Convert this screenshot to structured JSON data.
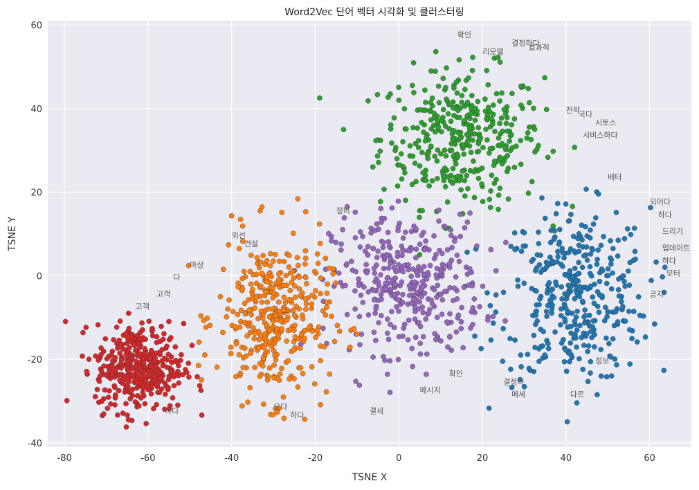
{
  "chart_data": {
    "type": "scatter",
    "title": "Word2Vec 단어 벡터 시각화 및 클러스터링",
    "xlabel": "TSNE X",
    "ylabel": "TSNE Y",
    "xlim": [
      -84,
      70
    ],
    "ylim": [
      -41,
      61
    ],
    "xticks": [
      -80,
      -60,
      -40,
      -20,
      0,
      20,
      40,
      60
    ],
    "yticks": [
      -40,
      -20,
      0,
      20,
      40,
      60
    ],
    "xtick_labels": [
      "-80",
      "-60",
      "-40",
      "-20",
      "0",
      "20",
      "40",
      "60"
    ],
    "ytick_labels": [
      "-40",
      "-20",
      "0",
      "20",
      "40",
      "60"
    ],
    "grid": true,
    "background": "#eaeaf2",
    "clusters": [
      {
        "color": "#2ca02c",
        "center": [
          15,
          33
        ],
        "spread": [
          13,
          11
        ]
      },
      {
        "color": "#1f77b4",
        "center": [
          42,
          -5
        ],
        "spread": [
          12,
          14
        ]
      },
      {
        "color": "#9467bd",
        "center": [
          2,
          -2
        ],
        "spread": [
          12,
          11
        ]
      },
      {
        "color": "#ff7f0e",
        "center": [
          -30,
          -10
        ],
        "spread": [
          9,
          13
        ]
      },
      {
        "color": "#d62728",
        "center": [
          -62,
          -22
        ],
        "spread": [
          7,
          7
        ]
      }
    ],
    "labels": [
      {
        "x": 14,
        "y": 57,
        "text": "확인"
      },
      {
        "x": 27,
        "y": 55,
        "text": "결정하다"
      },
      {
        "x": 31,
        "y": 54,
        "text": "효과적"
      },
      {
        "x": 20,
        "y": 53,
        "text": "리모델"
      },
      {
        "x": 40,
        "y": 39,
        "text": "전략"
      },
      {
        "x": 43,
        "y": 38,
        "text": "국다"
      },
      {
        "x": 47,
        "y": 36,
        "text": "시토스"
      },
      {
        "x": 44,
        "y": 33,
        "text": "서비스하다"
      },
      {
        "x": 50,
        "y": 23,
        "text": "배터"
      },
      {
        "x": 60,
        "y": 17,
        "text": "되어다"
      },
      {
        "x": 62,
        "y": 14,
        "text": "하다"
      },
      {
        "x": 63,
        "y": 10,
        "text": "드리기"
      },
      {
        "x": 63,
        "y": 6,
        "text": "업데이트"
      },
      {
        "x": 63,
        "y": 3,
        "text": "하다"
      },
      {
        "x": 64,
        "y": 0,
        "text": "모터"
      },
      {
        "x": 60,
        "y": -5,
        "text": "공지"
      },
      {
        "x": 47,
        "y": -21,
        "text": "정보"
      },
      {
        "x": 25,
        "y": -26,
        "text": "결정다"
      },
      {
        "x": 27,
        "y": -29,
        "text": "메세"
      },
      {
        "x": 41,
        "y": -29,
        "text": "다르"
      },
      {
        "x": 12,
        "y": -24,
        "text": "확인"
      },
      {
        "x": 5,
        "y": -28,
        "text": "메시지"
      },
      {
        "x": -7,
        "y": -33,
        "text": "결세"
      },
      {
        "x": -15,
        "y": 15,
        "text": "정비"
      },
      {
        "x": -40,
        "y": 9,
        "text": "외선"
      },
      {
        "x": -37,
        "y": 7,
        "text": "건설"
      },
      {
        "x": -50,
        "y": 2,
        "text": "마상"
      },
      {
        "x": -54,
        "y": -1,
        "text": "다"
      },
      {
        "x": -58,
        "y": -5,
        "text": "고객"
      },
      {
        "x": -63,
        "y": -8,
        "text": "고객"
      },
      {
        "x": -30,
        "y": -32,
        "text": "오다"
      },
      {
        "x": -26,
        "y": -34,
        "text": "하다"
      },
      {
        "x": -56,
        "y": -33,
        "text": "하다"
      }
    ]
  }
}
